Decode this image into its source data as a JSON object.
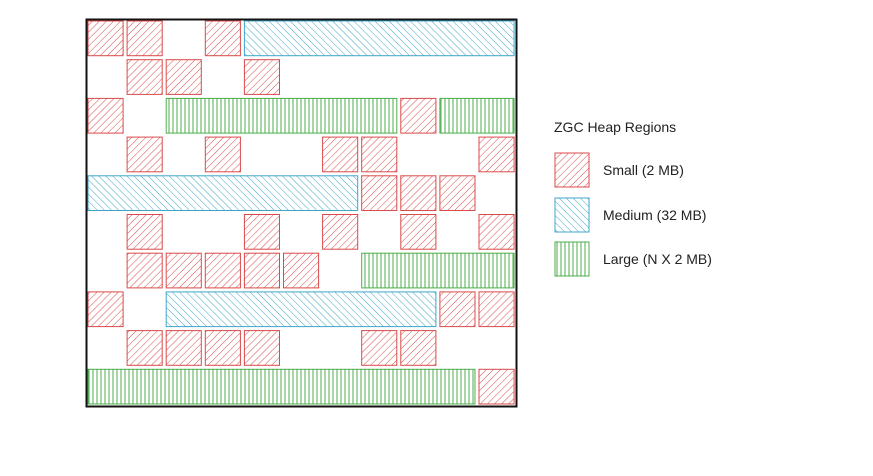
{
  "colors": {
    "small": "#d94a4a",
    "medium": "#3fa6c8",
    "large": "#4cae4c",
    "border": "#111111"
  },
  "legend": {
    "title": "ZGC Heap Regions",
    "small_label": "Small (2 MB)",
    "medium_label": "Medium (32 MB)",
    "large_label": "Large (N X 2 MB)"
  },
  "heap": {
    "rows": [
      [
        [
          "small",
          0,
          1
        ],
        [
          "small",
          1,
          1
        ],
        [
          "small",
          3,
          1
        ],
        [
          "medium",
          4,
          7
        ]
      ],
      [
        [
          "small",
          1,
          1
        ],
        [
          "small",
          2,
          1
        ],
        [
          "small",
          4,
          1
        ]
      ],
      [
        [
          "small",
          0,
          1
        ],
        [
          "large",
          2,
          6
        ],
        [
          "small",
          8,
          1
        ],
        [
          "large",
          9,
          2
        ]
      ],
      [
        [
          "small",
          1,
          1
        ],
        [
          "small",
          3,
          1
        ],
        [
          "small",
          6,
          1
        ],
        [
          "small",
          7,
          1
        ],
        [
          "small",
          10,
          1
        ]
      ],
      [
        [
          "medium",
          0,
          7
        ],
        [
          "small",
          7,
          1
        ],
        [
          "small",
          8,
          1
        ],
        [
          "small",
          9,
          1
        ]
      ],
      [
        [
          "small",
          1,
          1
        ],
        [
          "small",
          4,
          1
        ],
        [
          "small",
          6,
          1
        ],
        [
          "small",
          8,
          1
        ],
        [
          "small",
          10,
          1
        ]
      ],
      [
        [
          "small",
          1,
          1
        ],
        [
          "small",
          2,
          1
        ],
        [
          "small",
          3,
          1
        ],
        [
          "small",
          4,
          1
        ],
        [
          "small",
          5,
          1
        ],
        [
          "large",
          7,
          4
        ]
      ],
      [
        [
          "small",
          0,
          1
        ],
        [
          "medium",
          2,
          7
        ],
        [
          "small",
          9,
          1
        ],
        [
          "small",
          10,
          1
        ]
      ],
      [
        [
          "small",
          1,
          1
        ],
        [
          "small",
          2,
          1
        ],
        [
          "small",
          3,
          1
        ],
        [
          "small",
          4,
          1
        ],
        [
          "small",
          7,
          1
        ],
        [
          "small",
          8,
          1
        ]
      ],
      [
        [
          "large",
          0,
          10
        ],
        [
          "small",
          10,
          1
        ]
      ]
    ]
  }
}
